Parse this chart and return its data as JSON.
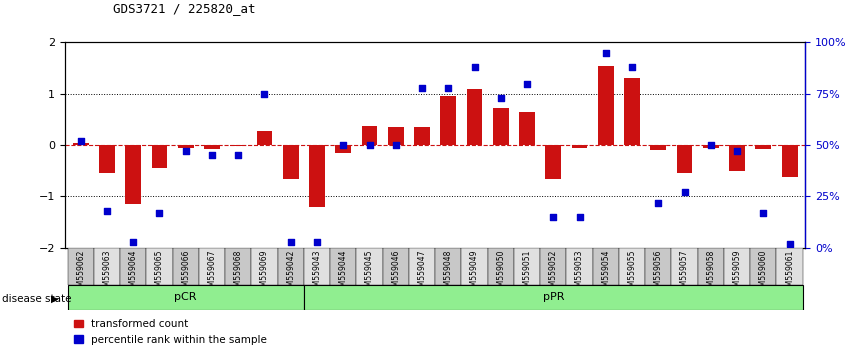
{
  "title": "GDS3721 / 225820_at",
  "samples": [
    "GSM559062",
    "GSM559063",
    "GSM559064",
    "GSM559065",
    "GSM559066",
    "GSM559067",
    "GSM559068",
    "GSM559069",
    "GSM559042",
    "GSM559043",
    "GSM559044",
    "GSM559045",
    "GSM559046",
    "GSM559047",
    "GSM559048",
    "GSM559049",
    "GSM559050",
    "GSM559051",
    "GSM559052",
    "GSM559053",
    "GSM559054",
    "GSM559055",
    "GSM559056",
    "GSM559057",
    "GSM559058",
    "GSM559059",
    "GSM559060",
    "GSM559061"
  ],
  "bar_values": [
    0.05,
    -0.55,
    -1.15,
    -0.45,
    -0.05,
    -0.08,
    -0.02,
    0.28,
    -0.65,
    -1.2,
    -0.15,
    0.37,
    0.35,
    0.35,
    0.95,
    1.1,
    0.72,
    0.65,
    -0.65,
    -0.05,
    1.55,
    1.3,
    -0.1,
    -0.55,
    -0.05,
    -0.5,
    -0.08,
    -0.62
  ],
  "percentile_values": [
    52,
    18,
    3,
    17,
    47,
    45,
    45,
    75,
    3,
    3,
    50,
    50,
    50,
    78,
    78,
    88,
    73,
    80,
    15,
    15,
    95,
    88,
    22,
    27,
    50,
    47,
    17,
    2
  ],
  "pCR_count": 9,
  "bar_color": "#CC1111",
  "dot_color": "#0000CC",
  "light_green": "#90EE90",
  "tick_bg_dark": "#C8C8C8",
  "tick_bg_light": "#E0E0E0",
  "ylim": [
    -2,
    2
  ],
  "y2lim": [
    0,
    100
  ],
  "legend_bar_label": "transformed count",
  "legend_dot_label": "percentile rank within the sample",
  "disease_state_label": "disease state"
}
